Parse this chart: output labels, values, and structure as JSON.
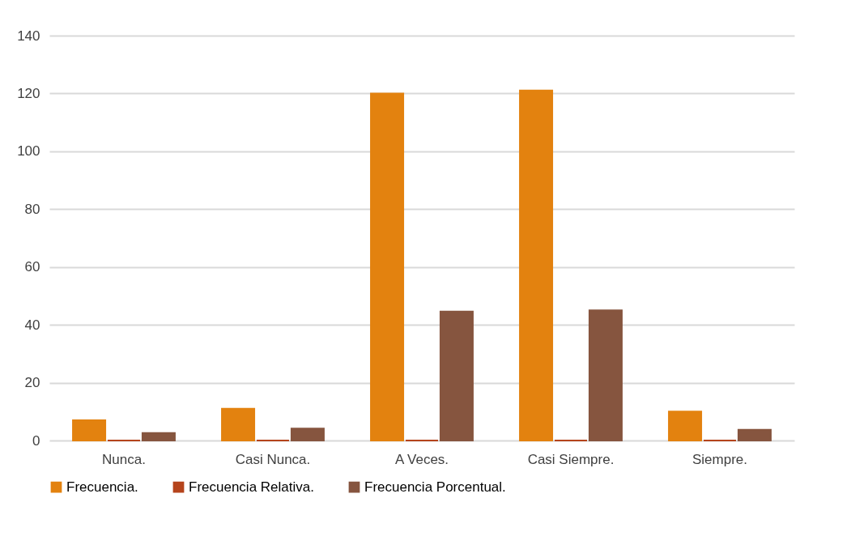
{
  "chart_data": {
    "type": "bar",
    "categories": [
      "Nunca.",
      "Casi Nunca.",
      "A Veces.",
      "Casi Siempre.",
      "Siempre."
    ],
    "series": [
      {
        "name": "Frecuencia.",
        "color": "#e3820f",
        "values": [
          7,
          11,
          120,
          121,
          10
        ]
      },
      {
        "name": "Frecuencia Relativa.",
        "color": "#b5441c",
        "values": [
          0,
          0,
          0,
          0,
          0
        ]
      },
      {
        "name": "Frecuencia Porcentual.",
        "color": "#86553f",
        "values": [
          2.6,
          4.1,
          44.6,
          45,
          3.7
        ]
      }
    ],
    "ylim": [
      0,
      140
    ],
    "yticks": [
      0,
      20,
      40,
      60,
      80,
      100,
      120,
      140
    ],
    "grid": "y",
    "legend": "bottom"
  }
}
